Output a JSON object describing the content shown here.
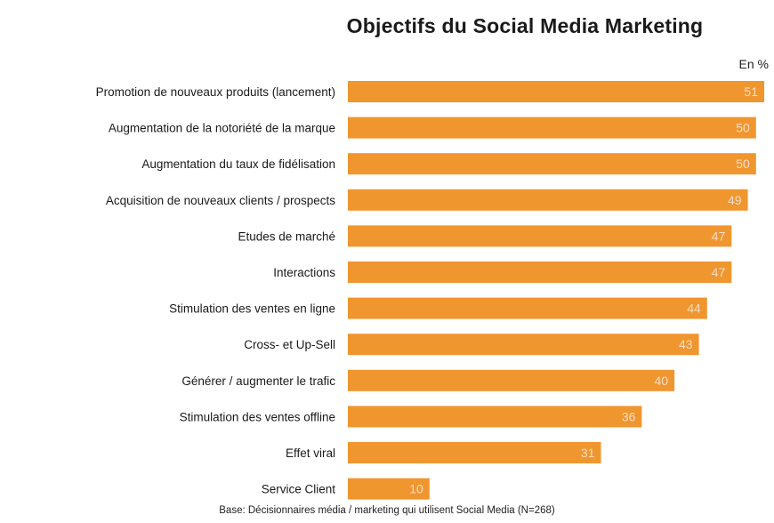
{
  "chart_data": {
    "type": "bar",
    "orientation": "horizontal",
    "title": "Objectifs du Social Media Marketing",
    "unit_label": "En %",
    "categories": [
      "Promotion de nouveaux produits (lancement)",
      "Augmentation de la notoriété de la marque",
      "Augmentation du taux de fidélisation",
      "Acquisition de nouveaux clients / prospects",
      "Etudes de marché",
      "Interactions",
      "Stimulation des ventes en ligne",
      "Cross- et Up-Sell",
      "Générer / augmenter le trafic",
      "Stimulation des ventes offline",
      "Effet viral",
      "Service Client"
    ],
    "values": [
      51,
      50,
      50,
      49,
      47,
      47,
      44,
      43,
      40,
      36,
      31,
      10
    ],
    "data_labels": [
      "51",
      "50",
      "50",
      "49",
      "47",
      "47",
      "44",
      "43",
      "40",
      "36",
      "31",
      "10"
    ],
    "xlim": [
      0,
      51
    ],
    "grid": false,
    "legend": "none",
    "bar_color": "#f0962f",
    "footnote": "Base: Décisionnaires média / marketing qui utilisent Social Media (N=268)"
  }
}
